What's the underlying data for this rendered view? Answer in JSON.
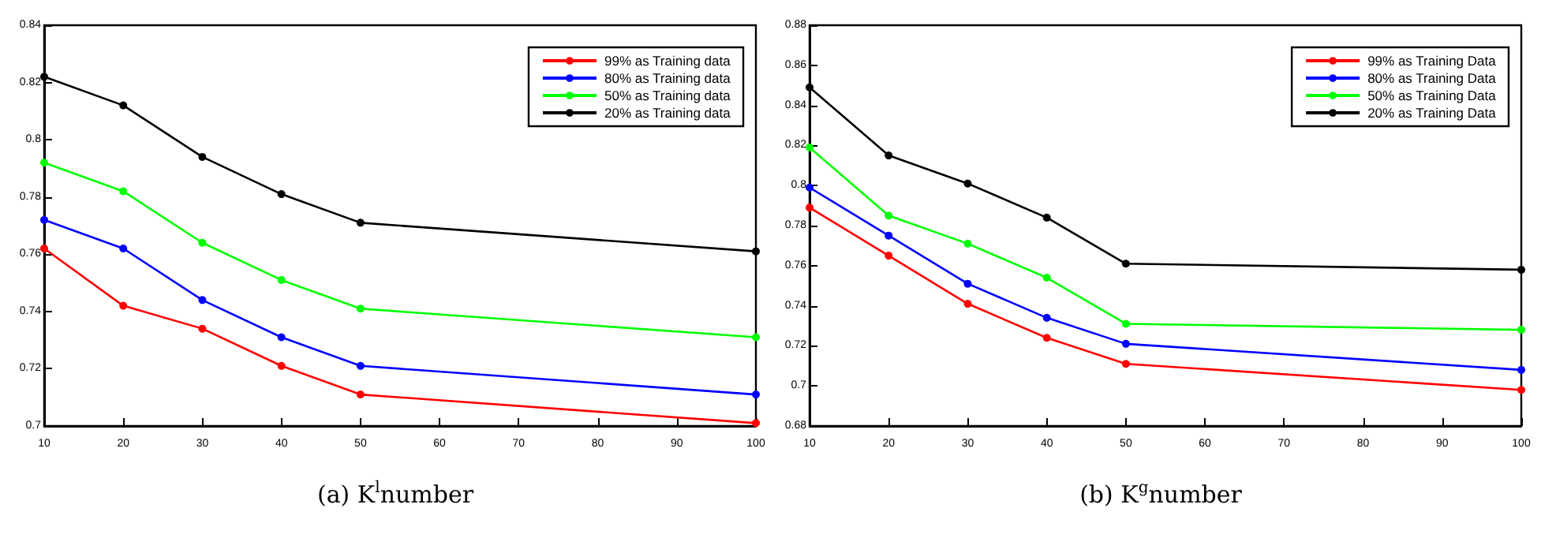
{
  "chart_data": [
    {
      "type": "line",
      "title": "(a) K$^{l}$number",
      "x": [
        10,
        20,
        30,
        40,
        50,
        100
      ],
      "series": [
        {
          "name": "99% as Training data",
          "color": "#ff0000",
          "values": [
            0.762,
            0.742,
            0.734,
            0.721,
            0.711,
            0.701
          ]
        },
        {
          "name": "80% as Training data",
          "color": "#0000ff",
          "values": [
            0.772,
            0.762,
            0.744,
            0.731,
            0.721,
            0.711
          ]
        },
        {
          "name": "50% as Training data",
          "color": "#00ff00",
          "values": [
            0.792,
            0.782,
            0.764,
            0.751,
            0.741,
            0.731
          ]
        },
        {
          "name": "20% as Training data",
          "color": "#000000",
          "values": [
            0.822,
            0.812,
            0.794,
            0.781,
            0.771,
            0.761
          ]
        }
      ],
      "xlim": [
        10,
        100
      ],
      "xticks": [
        10,
        20,
        30,
        40,
        50,
        60,
        70,
        80,
        90,
        100
      ],
      "ylim": [
        0.7,
        0.84
      ],
      "yticks": [
        0.7,
        0.72,
        0.74,
        0.76,
        0.78,
        0.8,
        0.82,
        0.84
      ],
      "grid": false,
      "legend": "top right",
      "marker": "circle",
      "line_style": "solid"
    },
    {
      "type": "line",
      "title": "(b) K$^{g}$number",
      "x": [
        10,
        20,
        30,
        40,
        50,
        100
      ],
      "series": [
        {
          "name": "99% as Training Data",
          "color": "#ff0000",
          "values": [
            0.789,
            0.765,
            0.741,
            0.724,
            0.711,
            0.698
          ]
        },
        {
          "name": "80% as Training Data",
          "color": "#0000ff",
          "values": [
            0.799,
            0.775,
            0.751,
            0.734,
            0.721,
            0.708
          ]
        },
        {
          "name": "50% as Training Data",
          "color": "#00ff00",
          "values": [
            0.819,
            0.785,
            0.771,
            0.754,
            0.731,
            0.728
          ]
        },
        {
          "name": "20% as Training Data",
          "color": "#000000",
          "values": [
            0.849,
            0.815,
            0.801,
            0.784,
            0.761,
            0.758
          ]
        }
      ],
      "xlim": [
        10,
        100
      ],
      "xticks": [
        10,
        20,
        30,
        40,
        50,
        60,
        70,
        80,
        90,
        100
      ],
      "ylim": [
        0.68,
        0.88
      ],
      "yticks": [
        0.68,
        0.7,
        0.72,
        0.74,
        0.76,
        0.78,
        0.8,
        0.82,
        0.84,
        0.86,
        0.88
      ],
      "grid": false,
      "legend": "top right",
      "marker": "circle",
      "line_style": "solid"
    }
  ]
}
